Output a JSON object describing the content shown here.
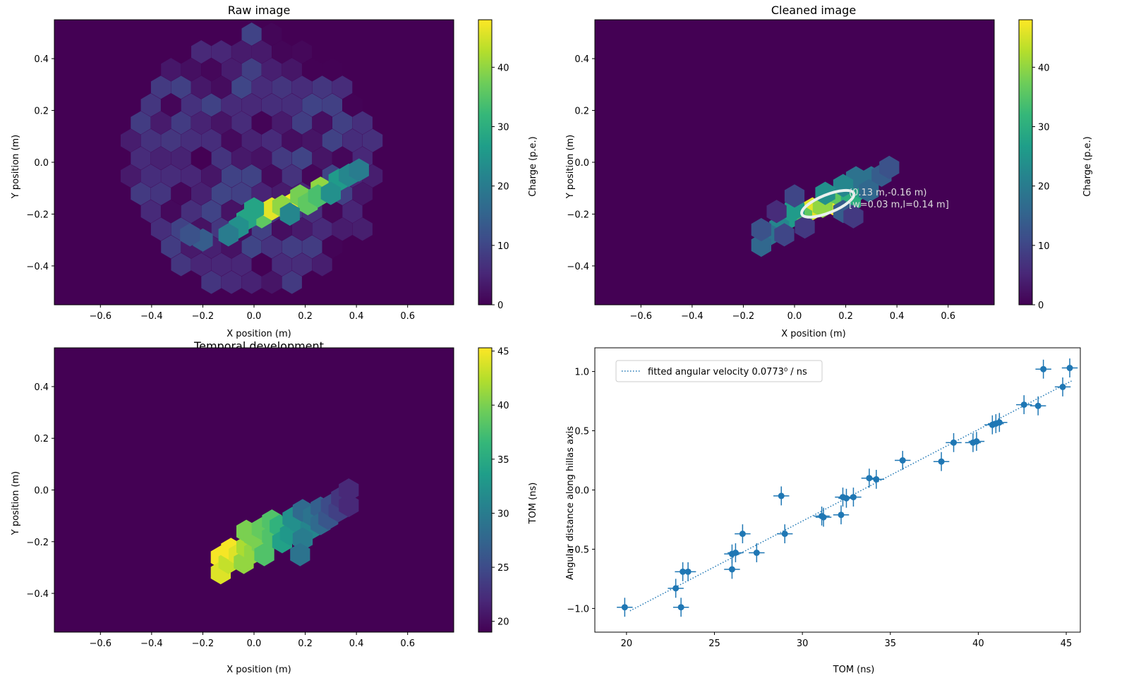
{
  "chart_data": [
    {
      "type": "heatmap",
      "title": "Raw image",
      "xlabel": "X position (m)",
      "ylabel": "Y position (m)",
      "xlim": [
        -0.78,
        0.78
      ],
      "ylim": [
        -0.55,
        0.55
      ],
      "x_ticks": [
        -0.6,
        -0.4,
        -0.2,
        0.0,
        0.2,
        0.4,
        0.6
      ],
      "x_tick_labels": [
        "−0.6",
        "−0.4",
        "−0.2",
        "0.0",
        "0.2",
        "0.4",
        "0.6"
      ],
      "y_ticks": [
        -0.4,
        -0.2,
        0.0,
        0.2,
        0.4
      ],
      "y_tick_labels": [
        "−0.4",
        "−0.2",
        "0.0",
        "0.2",
        "0.4"
      ],
      "colorbar": {
        "label": "Charge (p.e.)",
        "range": [
          0,
          48
        ],
        "ticks": [
          0,
          10,
          20,
          30,
          40
        ],
        "tick_labels": [
          "0",
          "10",
          "20",
          "30",
          "40"
        ]
      },
      "background_value": 0,
      "pixels": [
        {
          "x": 0.03,
          "y": -0.21,
          "v": 36
        },
        {
          "x": 0.07,
          "y": -0.18,
          "v": 46
        },
        {
          "x": 0.15,
          "y": -0.16,
          "v": 48
        },
        {
          "x": 0.11,
          "y": -0.17,
          "v": 40
        },
        {
          "x": 0.18,
          "y": -0.13,
          "v": 38
        },
        {
          "x": 0.26,
          "y": -0.1,
          "v": 40
        },
        {
          "x": 0.21,
          "y": -0.16,
          "v": 36
        },
        {
          "x": 0.25,
          "y": -0.13,
          "v": 34
        },
        {
          "x": 0.0,
          "y": -0.18,
          "v": 28
        },
        {
          "x": -0.03,
          "y": -0.22,
          "v": 28
        },
        {
          "x": -0.06,
          "y": -0.25,
          "v": 24
        },
        {
          "x": -0.1,
          "y": -0.28,
          "v": 20
        },
        {
          "x": 0.33,
          "y": -0.07,
          "v": 26
        },
        {
          "x": 0.37,
          "y": -0.05,
          "v": 22
        },
        {
          "x": 0.41,
          "y": -0.03,
          "v": 20
        },
        {
          "x": 0.3,
          "y": -0.12,
          "v": 24
        },
        {
          "x": 0.14,
          "y": -0.2,
          "v": 22
        },
        {
          "x": -0.2,
          "y": -0.3,
          "v": 14
        },
        {
          "x": -0.25,
          "y": -0.28,
          "v": 12
        }
      ],
      "noise_region": {
        "center": [
          0.0,
          0.0
        ],
        "radius": 0.5,
        "max_value": 10
      }
    },
    {
      "type": "heatmap",
      "title": "Cleaned image",
      "xlabel": "X position (m)",
      "ylabel": "Y position (m)",
      "xlim": [
        -0.78,
        0.78
      ],
      "ylim": [
        -0.55,
        0.55
      ],
      "x_ticks": [
        -0.6,
        -0.4,
        -0.2,
        0.0,
        0.2,
        0.4,
        0.6
      ],
      "x_tick_labels": [
        "−0.6",
        "−0.4",
        "−0.2",
        "0.0",
        "0.2",
        "0.4",
        "0.6"
      ],
      "y_ticks": [
        -0.4,
        -0.2,
        0.0,
        0.2,
        0.4
      ],
      "y_tick_labels": [
        "−0.4",
        "−0.2",
        "0.0",
        "0.2",
        "0.4"
      ],
      "colorbar": {
        "label": "Charge (p.e.)",
        "range": [
          0,
          48
        ],
        "ticks": [
          0,
          10,
          20,
          30,
          40
        ],
        "tick_labels": [
          "0",
          "10",
          "20",
          "30",
          "40"
        ]
      },
      "background_value": 0,
      "pixels": [
        {
          "x": 0.07,
          "y": -0.18,
          "v": 46
        },
        {
          "x": 0.15,
          "y": -0.16,
          "v": 48
        },
        {
          "x": 0.11,
          "y": -0.17,
          "v": 40
        },
        {
          "x": 0.03,
          "y": -0.21,
          "v": 36
        },
        {
          "x": 0.18,
          "y": -0.13,
          "v": 36
        },
        {
          "x": 0.22,
          "y": -0.15,
          "v": 30
        },
        {
          "x": 0.26,
          "y": -0.1,
          "v": 28
        },
        {
          "x": 0.0,
          "y": -0.18,
          "v": 26
        },
        {
          "x": -0.03,
          "y": -0.22,
          "v": 26
        },
        {
          "x": -0.06,
          "y": -0.25,
          "v": 22
        },
        {
          "x": -0.1,
          "y": -0.28,
          "v": 18
        },
        {
          "x": -0.13,
          "y": -0.32,
          "v": 16
        },
        {
          "x": -0.13,
          "y": -0.26,
          "v": 12
        },
        {
          "x": -0.04,
          "y": -0.28,
          "v": 10
        },
        {
          "x": 0.04,
          "y": -0.25,
          "v": 8
        },
        {
          "x": 0.3,
          "y": -0.06,
          "v": 18
        },
        {
          "x": 0.34,
          "y": -0.05,
          "v": 14
        },
        {
          "x": 0.37,
          "y": -0.02,
          "v": 12
        },
        {
          "x": 0.24,
          "y": -0.06,
          "v": 18
        },
        {
          "x": 0.19,
          "y": -0.09,
          "v": 22
        },
        {
          "x": 0.12,
          "y": -0.12,
          "v": 24
        },
        {
          "x": 0.29,
          "y": -0.11,
          "v": 16
        },
        {
          "x": 0.19,
          "y": -0.19,
          "v": 14
        },
        {
          "x": 0.23,
          "y": -0.21,
          "v": 8
        },
        {
          "x": -0.07,
          "y": -0.19,
          "v": 6
        },
        {
          "x": 0.0,
          "y": -0.13,
          "v": 10
        }
      ],
      "hillas_ellipse": {
        "cx": 0.13,
        "cy": -0.16,
        "width": 0.03,
        "length": 0.14,
        "angle_deg": 22
      },
      "annotations": [
        "(0.13 m,-0.16 m)",
        "[w=0.03 m,l=0.14 m]"
      ]
    },
    {
      "type": "heatmap",
      "title": "Temporal development",
      "xlabel": "X position (m)",
      "ylabel": "Y position (m)",
      "xlim": [
        -0.78,
        0.78
      ],
      "ylim": [
        -0.55,
        0.55
      ],
      "x_ticks": [
        -0.6,
        -0.4,
        -0.2,
        0.0,
        0.2,
        0.4,
        0.6
      ],
      "x_tick_labels": [
        "−0.6",
        "−0.4",
        "−0.2",
        "0.0",
        "0.2",
        "0.4",
        "0.6"
      ],
      "y_ticks": [
        -0.4,
        -0.2,
        0.0,
        0.2,
        0.4
      ],
      "y_tick_labels": [
        "−0.4",
        "−0.2",
        "0.0",
        "0.2",
        "0.4"
      ],
      "colorbar": {
        "label": "TOM (ns)",
        "range": [
          19,
          45.3
        ],
        "ticks": [
          20,
          25,
          30,
          35,
          40,
          45
        ],
        "tick_labels": [
          "20",
          "25",
          "30",
          "35",
          "40",
          "45"
        ]
      },
      "background_value": 19,
      "pixels": [
        {
          "x": -0.13,
          "y": -0.26,
          "v": 45
        },
        {
          "x": -0.13,
          "y": -0.32,
          "v": 44
        },
        {
          "x": -0.1,
          "y": -0.28,
          "v": 43
        },
        {
          "x": -0.09,
          "y": -0.23,
          "v": 45
        },
        {
          "x": -0.06,
          "y": -0.25,
          "v": 44
        },
        {
          "x": -0.04,
          "y": -0.28,
          "v": 41
        },
        {
          "x": -0.03,
          "y": -0.22,
          "v": 42
        },
        {
          "x": 0.0,
          "y": -0.24,
          "v": 41
        },
        {
          "x": 0.03,
          "y": -0.21,
          "v": 40
        },
        {
          "x": -0.03,
          "y": -0.16,
          "v": 40
        },
        {
          "x": 0.0,
          "y": -0.18,
          "v": 40
        },
        {
          "x": 0.03,
          "y": -0.15,
          "v": 39
        },
        {
          "x": 0.07,
          "y": -0.18,
          "v": 38
        },
        {
          "x": 0.07,
          "y": -0.12,
          "v": 38
        },
        {
          "x": 0.1,
          "y": -0.14,
          "v": 36
        },
        {
          "x": 0.11,
          "y": -0.2,
          "v": 34
        },
        {
          "x": 0.14,
          "y": -0.17,
          "v": 33
        },
        {
          "x": 0.15,
          "y": -0.11,
          "v": 32
        },
        {
          "x": 0.18,
          "y": -0.13,
          "v": 32
        },
        {
          "x": 0.19,
          "y": -0.08,
          "v": 28
        },
        {
          "x": 0.22,
          "y": -0.15,
          "v": 31
        },
        {
          "x": 0.23,
          "y": -0.1,
          "v": 29
        },
        {
          "x": 0.26,
          "y": -0.07,
          "v": 27
        },
        {
          "x": 0.26,
          "y": -0.13,
          "v": 28
        },
        {
          "x": 0.29,
          "y": -0.11,
          "v": 26
        },
        {
          "x": 0.3,
          "y": -0.06,
          "v": 25
        },
        {
          "x": 0.33,
          "y": -0.08,
          "v": 24
        },
        {
          "x": 0.34,
          "y": -0.03,
          "v": 23
        },
        {
          "x": 0.37,
          "y": -0.06,
          "v": 22
        },
        {
          "x": 0.37,
          "y": 0.0,
          "v": 22
        },
        {
          "x": 0.19,
          "y": -0.19,
          "v": 30
        },
        {
          "x": 0.18,
          "y": -0.25,
          "v": 29
        },
        {
          "x": 0.04,
          "y": -0.25,
          "v": 38
        }
      ]
    },
    {
      "type": "scatter",
      "title": "",
      "xlabel": "TOM (ns)",
      "ylabel": "Angular distance along hillas axis",
      "xlim": [
        18.2,
        45.8
      ],
      "ylim": [
        -1.2,
        1.2
      ],
      "x_ticks": [
        20,
        25,
        30,
        35,
        40,
        45
      ],
      "x_tick_labels": [
        "20",
        "25",
        "30",
        "35",
        "40",
        "45"
      ],
      "y_ticks": [
        -1.0,
        -0.5,
        0.0,
        0.5,
        1.0
      ],
      "y_tick_labels": [
        "−1.0",
        "−0.5",
        "0.0",
        "0.5",
        "1.0"
      ],
      "color": "#1f77b4",
      "legend": {
        "label": "fitted angular velocity 0.0773⁰ / ns",
        "placement": "top-left"
      },
      "fit_line": {
        "x": [
          20.2,
          45.3
        ],
        "y": [
          -1.02,
          0.92
        ]
      },
      "x_err": 0.45,
      "y_err": 0.08,
      "points": [
        {
          "x": 19.9,
          "y": -0.99
        },
        {
          "x": 22.8,
          "y": -0.83
        },
        {
          "x": 23.1,
          "y": -0.99
        },
        {
          "x": 23.2,
          "y": -0.69
        },
        {
          "x": 23.5,
          "y": -0.69
        },
        {
          "x": 26.0,
          "y": -0.67
        },
        {
          "x": 26.0,
          "y": -0.54
        },
        {
          "x": 26.2,
          "y": -0.53
        },
        {
          "x": 26.6,
          "y": -0.37
        },
        {
          "x": 27.4,
          "y": -0.53
        },
        {
          "x": 28.8,
          "y": -0.05
        },
        {
          "x": 29.0,
          "y": -0.37
        },
        {
          "x": 31.1,
          "y": -0.22
        },
        {
          "x": 31.2,
          "y": -0.23
        },
        {
          "x": 32.2,
          "y": -0.21
        },
        {
          "x": 32.3,
          "y": -0.06
        },
        {
          "x": 32.5,
          "y": -0.07
        },
        {
          "x": 32.9,
          "y": -0.06
        },
        {
          "x": 33.8,
          "y": 0.1
        },
        {
          "x": 34.2,
          "y": 0.09
        },
        {
          "x": 35.7,
          "y": 0.25
        },
        {
          "x": 37.9,
          "y": 0.24
        },
        {
          "x": 38.6,
          "y": 0.4
        },
        {
          "x": 39.7,
          "y": 0.4
        },
        {
          "x": 39.9,
          "y": 0.41
        },
        {
          "x": 40.8,
          "y": 0.55
        },
        {
          "x": 41.0,
          "y": 0.56
        },
        {
          "x": 41.2,
          "y": 0.57
        },
        {
          "x": 42.6,
          "y": 0.72
        },
        {
          "x": 43.4,
          "y": 0.71
        },
        {
          "x": 43.7,
          "y": 1.02
        },
        {
          "x": 44.8,
          "y": 0.87
        },
        {
          "x": 45.2,
          "y": 1.03
        }
      ]
    }
  ]
}
